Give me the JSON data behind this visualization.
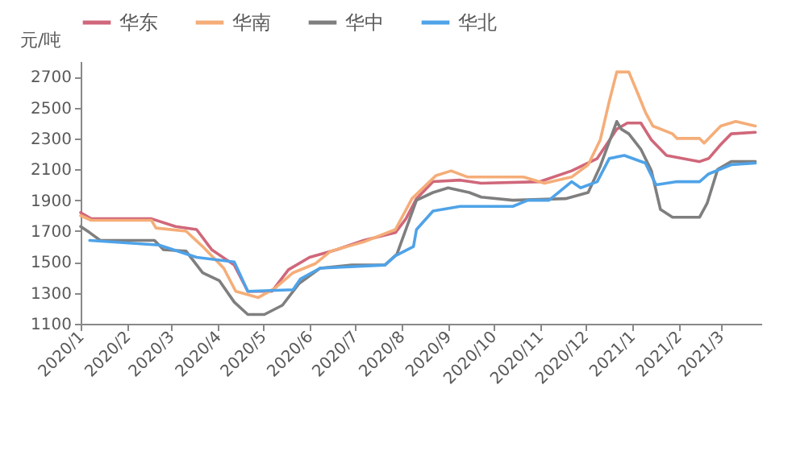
{
  "chart_data": {
    "type": "line",
    "ylabel": "元/吨",
    "legend": "top",
    "grid": false,
    "xlim": [
      "2020-01-01",
      "2021-03-28"
    ],
    "ylim": [
      1100,
      2800
    ],
    "yticks": [
      1100,
      1300,
      1500,
      1700,
      1900,
      2100,
      2300,
      2500,
      2700
    ],
    "xticks": [
      {
        "value": "2020-01-01",
        "label": "2020/1"
      },
      {
        "value": "2020-02-01",
        "label": "2020/2"
      },
      {
        "value": "2020-03-01",
        "label": "2020/3"
      },
      {
        "value": "2020-04-01",
        "label": "2020/4"
      },
      {
        "value": "2020-05-01",
        "label": "2020/5"
      },
      {
        "value": "2020-06-01",
        "label": "2020/6"
      },
      {
        "value": "2020-07-01",
        "label": "2020/7"
      },
      {
        "value": "2020-08-01",
        "label": "2020/8"
      },
      {
        "value": "2020-09-01",
        "label": "2020/9"
      },
      {
        "value": "2020-10-01",
        "label": "2020/10"
      },
      {
        "value": "2020-11-01",
        "label": "2020/11"
      },
      {
        "value": "2020-12-01",
        "label": "2020/12"
      },
      {
        "value": "2021-01-01",
        "label": "2021/1"
      },
      {
        "value": "2021-02-01",
        "label": "2021/2"
      },
      {
        "value": "2021-03-01",
        "label": "2021/3"
      }
    ],
    "series": [
      {
        "name": "华东",
        "color": "#d0677a",
        "x": [
          "2020-01-01",
          "2020-01-08",
          "2020-02-17",
          "2020-03-04",
          "2020-03-18",
          "2020-03-28",
          "2020-04-12",
          "2020-04-21",
          "2020-05-07",
          "2020-05-18",
          "2020-06-01",
          "2020-06-19",
          "2020-07-07",
          "2020-07-28",
          "2020-08-04",
          "2020-08-11",
          "2020-08-22",
          "2020-09-09",
          "2020-09-23",
          "2020-11-01",
          "2020-11-22",
          "2020-12-09",
          "2020-12-22",
          "2020-12-29",
          "2021-01-07",
          "2021-01-14",
          "2021-01-24",
          "2021-02-15",
          "2021-02-21",
          "2021-03-01",
          "2021-03-08",
          "2021-03-24"
        ],
        "values": [
          1820,
          1780,
          1780,
          1730,
          1710,
          1580,
          1480,
          1310,
          1310,
          1450,
          1530,
          1580,
          1640,
          1690,
          1780,
          1910,
          2020,
          2030,
          2010,
          2020,
          2090,
          2170,
          2360,
          2400,
          2400,
          2290,
          2190,
          2150,
          2170,
          2260,
          2330,
          2340
        ]
      },
      {
        "name": "华南",
        "color": "#f5ad78",
        "x": [
          "2020-01-01",
          "2020-01-08",
          "2020-02-17",
          "2020-02-20",
          "2020-03-11",
          "2020-03-22",
          "2020-04-05",
          "2020-04-13",
          "2020-04-28",
          "2020-05-09",
          "2020-05-21",
          "2020-06-05",
          "2020-06-15",
          "2020-07-07",
          "2020-07-28",
          "2020-08-08",
          "2020-08-24",
          "2020-09-03",
          "2020-09-14",
          "2020-10-21",
          "2020-11-04",
          "2020-11-22",
          "2020-12-03",
          "2020-12-11",
          "2020-12-17",
          "2020-12-22",
          "2020-12-30",
          "2021-01-05",
          "2021-01-10",
          "2021-01-15",
          "2021-01-28",
          "2021-01-31",
          "2021-02-15",
          "2021-02-18",
          "2021-03-01",
          "2021-03-11",
          "2021-03-24"
        ],
        "values": [
          1800,
          1770,
          1770,
          1720,
          1700,
          1600,
          1460,
          1310,
          1270,
          1330,
          1430,
          1490,
          1570,
          1630,
          1710,
          1910,
          2060,
          2090,
          2050,
          2050,
          2010,
          2050,
          2130,
          2290,
          2540,
          2730,
          2730,
          2590,
          2470,
          2380,
          2330,
          2300,
          2300,
          2270,
          2380,
          2410,
          2380
        ]
      },
      {
        "name": "华中",
        "color": "#7f7f7f",
        "x": [
          "2020-01-01",
          "2020-01-07",
          "2020-01-14",
          "2020-02-19",
          "2020-02-25",
          "2020-03-11",
          "2020-03-22",
          "2020-04-02",
          "2020-04-12",
          "2020-04-21",
          "2020-05-02",
          "2020-05-14",
          "2020-05-25",
          "2020-06-08",
          "2020-06-29",
          "2020-07-21",
          "2020-07-29",
          "2020-08-11",
          "2020-08-22",
          "2020-09-01",
          "2020-09-15",
          "2020-09-23",
          "2020-10-14",
          "2020-11-18",
          "2020-12-03",
          "2020-12-11",
          "2020-12-22",
          "2020-12-25",
          "2020-12-30",
          "2021-01-07",
          "2021-01-14",
          "2021-01-20",
          "2021-01-28",
          "2021-02-15",
          "2021-02-20",
          "2021-02-27",
          "2021-03-08",
          "2021-03-24"
        ],
        "values": [
          1730,
          1690,
          1640,
          1640,
          1580,
          1570,
          1430,
          1380,
          1240,
          1160,
          1160,
          1220,
          1360,
          1460,
          1480,
          1480,
          1550,
          1900,
          1950,
          1980,
          1950,
          1920,
          1900,
          1910,
          1950,
          2120,
          2410,
          2360,
          2330,
          2230,
          2090,
          1840,
          1790,
          1790,
          1880,
          2100,
          2150,
          2150
        ]
      },
      {
        "name": "华北",
        "color": "#4fa3e8",
        "x": [
          "2020-01-07",
          "2020-02-22",
          "2020-03-18",
          "2020-04-12",
          "2020-04-21",
          "2020-05-21",
          "2020-05-26",
          "2020-06-08",
          "2020-07-21",
          "2020-07-28",
          "2020-08-09",
          "2020-08-11",
          "2020-08-22",
          "2020-09-09",
          "2020-10-14",
          "2020-10-24",
          "2020-11-07",
          "2020-11-22",
          "2020-11-28",
          "2020-12-09",
          "2020-12-17",
          "2020-12-27",
          "2021-01-10",
          "2021-01-17",
          "2021-01-31",
          "2021-02-15",
          "2021-02-21",
          "2021-03-08",
          "2021-03-24"
        ],
        "values": [
          1640,
          1610,
          1530,
          1500,
          1310,
          1320,
          1390,
          1460,
          1480,
          1540,
          1600,
          1710,
          1830,
          1860,
          1860,
          1900,
          1900,
          2020,
          1980,
          2020,
          2170,
          2190,
          2140,
          2000,
          2020,
          2020,
          2070,
          2130,
          2140
        ]
      }
    ]
  }
}
